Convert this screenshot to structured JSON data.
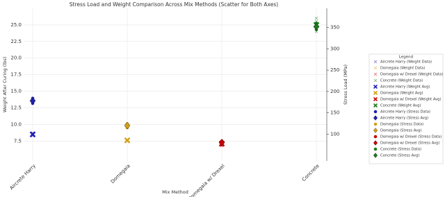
{
  "chart_data": {
    "type": "scatter",
    "title": "Stress Load and Weight Comparison Across Mix Methods (Scatter for Both Axes)",
    "xlabel": "Mix Method",
    "ylabel": "Weight After Curing (lbs)",
    "y2label": "Stress Load (MPa)",
    "categories": [
      "Aircrete Harry",
      "Domegaia",
      "Domegaia w/ Drexel",
      "Concrete"
    ],
    "ylim": [
      4.5,
      27.5
    ],
    "yticks": [
      7.5,
      {
        "value": 10,
        "label": "10.0"
      },
      12.5,
      {
        "value": 15,
        "label": "15.0"
      },
      17.5,
      {
        "value": 20,
        "label": "20.0"
      },
      22.5,
      {
        "value": 25,
        "label": "25.0"
      }
    ],
    "y2lim": [
      37,
      395
    ],
    "y2ticks": [
      100,
      150,
      200,
      250,
      300,
      350
    ],
    "grid": true,
    "legend_title": "Legend",
    "series": [
      {
        "name": "Aircrete Harry (Weight Data)",
        "color": "#1f1fb4",
        "marker": "x",
        "values": [
          [
            8.3,
            8.5,
            8.7
          ],
          null,
          null,
          null
        ]
      },
      {
        "name": "Domegaia (Weight Data)",
        "color": "#d4a017",
        "marker": "x",
        "values": [
          null,
          [
            7.5,
            7.6
          ],
          null,
          null
        ]
      },
      {
        "name": "Domegaia w/ Drexel (Weight Data)",
        "color": "#cc0000",
        "marker": "x",
        "values": [
          null,
          null,
          [
            6.8,
            7.1,
            7.4
          ],
          null
        ]
      },
      {
        "name": "Concrete (Weight Data)",
        "color": "#1a7a1a",
        "marker": "x",
        "values": [
          null,
          null,
          null,
          [
            24,
            24.5,
            25,
            25.5,
            26
          ]
        ]
      },
      {
        "name": "Aircrete Harry (Weight Avg)",
        "color": "#1f1fb4",
        "marker": "X",
        "values": [
          8.5,
          null,
          null,
          null
        ]
      },
      {
        "name": "Domegaia (Weight Avg)",
        "color": "#d4a017",
        "marker": "X",
        "values": [
          null,
          7.6,
          null,
          null
        ]
      },
      {
        "name": "Domegaia w/ Drexel (Weight Avg)",
        "color": "#cc0000",
        "marker": "X",
        "values": [
          null,
          null,
          7.1,
          null
        ]
      },
      {
        "name": "Concrete (Weight Avg)",
        "color": "#1a7a1a",
        "marker": "X",
        "values": [
          null,
          null,
          null,
          25
        ]
      },
      {
        "name": "Aircrete Harry (Stress Data)",
        "color": "#1f1fb4",
        "marker": "o",
        "axis": "y2",
        "values": [
          [
            172,
            175,
            178,
            181,
            184
          ],
          null,
          null,
          null
        ]
      },
      {
        "name": "Aircrete Harry (Stress Avg)",
        "color": "#1f1fb4",
        "marker": "D",
        "axis": "y2",
        "values": [
          178,
          null,
          null,
          null
        ]
      },
      {
        "name": "Domegaia (Stress Data)",
        "color": "#d4a017",
        "marker": "o",
        "axis": "y2",
        "values": [
          null,
          [
            115,
            118,
            121,
            124
          ],
          null,
          null
        ]
      },
      {
        "name": "Domegaia (Stress Avg)",
        "color": "#d4a017",
        "marker": "D",
        "axis": "y2",
        "values": [
          null,
          120,
          null,
          null
        ]
      },
      {
        "name": "Domegaia w/ Drexel (Stress Data)",
        "color": "#cc0000",
        "marker": "o",
        "axis": "y2",
        "values": [
          null,
          null,
          [
            75,
            78,
            81,
            84
          ],
          null
        ]
      },
      {
        "name": "Domegaia w/ Drexel (Stress Avg)",
        "color": "#cc0000",
        "marker": "D",
        "axis": "y2",
        "values": [
          null,
          null,
          80,
          null
        ]
      },
      {
        "name": "Concrete (Stress Data)",
        "color": "#1a7a1a",
        "marker": "o",
        "axis": "y2",
        "values": [
          null,
          null,
          null,
          [
            345,
            350,
            355,
            360
          ]
        ]
      },
      {
        "name": "Concrete (Stress Avg)",
        "color": "#1a7a1a",
        "marker": "D",
        "axis": "y2",
        "values": [
          null,
          null,
          null,
          352
        ]
      }
    ]
  }
}
